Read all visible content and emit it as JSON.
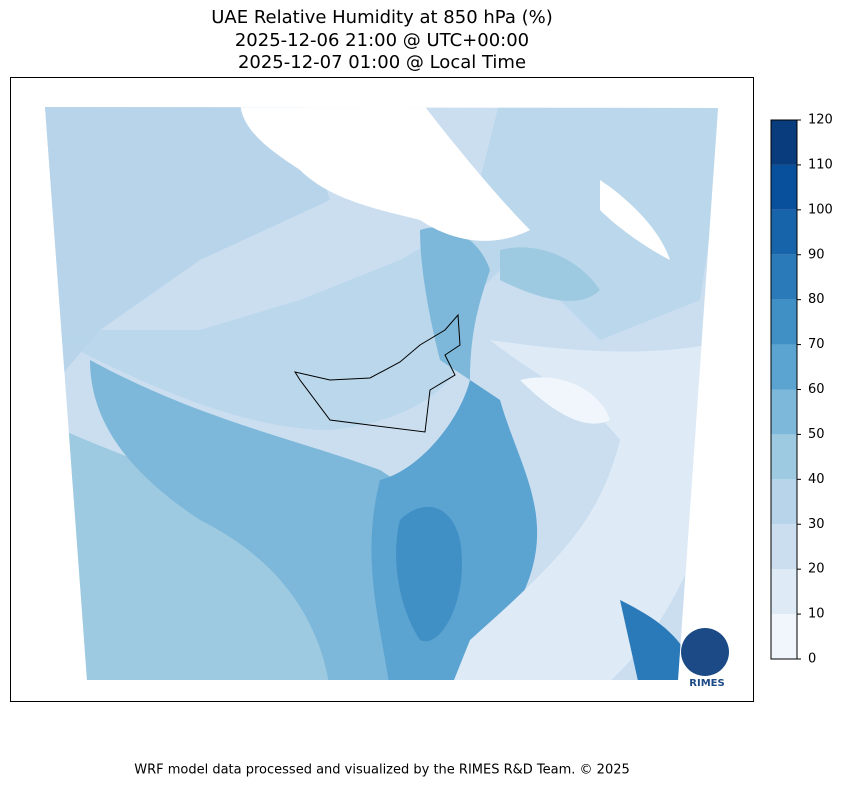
{
  "chart_data": {
    "type": "contour-map",
    "title": [
      "UAE Relative Humidity at 850 hPa (%)",
      "2025-12-06 21:00 @ UTC+00:00",
      "2025-12-07 01:00 @ Local Time"
    ],
    "colorbar": {
      "lim": [
        0,
        120
      ],
      "ticks": [
        0,
        10,
        20,
        30,
        40,
        50,
        60,
        70,
        80,
        90,
        100,
        110,
        120
      ],
      "colors": [
        "#f0f6fc",
        "#deebf7",
        "#cadef0",
        "#b7d4ea",
        "#9ecae1",
        "#7db8da",
        "#5ba3d0",
        "#4090c5",
        "#2a7ab9",
        "#1764ab",
        "#08509b",
        "#083c7d"
      ]
    },
    "logo": "RIMES",
    "footer": "WRF model data processed and visualized by the RIMES R&D Team. © 2025"
  }
}
